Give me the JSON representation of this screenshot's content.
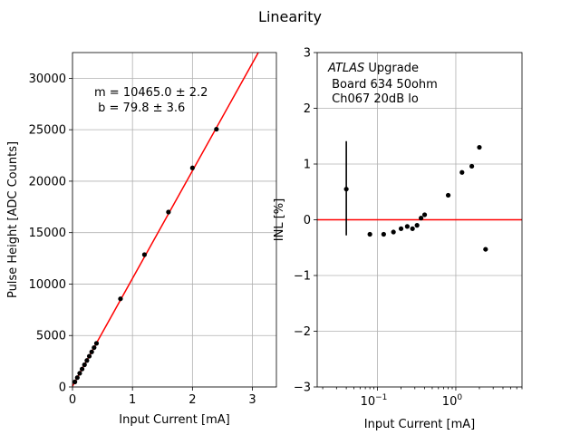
{
  "figure": {
    "title": "Linearity"
  },
  "chart_data": [
    {
      "type": "scatter",
      "id": "linearity",
      "xlabel": "Input Current [mA]",
      "ylabel": "Pulse Height [ADC Counts]",
      "xlim": [
        0,
        3.4
      ],
      "ylim": [
        0,
        32500
      ],
      "xticks": [
        0,
        1,
        2,
        3
      ],
      "yticks": [
        0,
        5000,
        10000,
        15000,
        20000,
        25000,
        30000
      ],
      "grid": true,
      "points": {
        "x": [
          0.04,
          0.08,
          0.12,
          0.16,
          0.2,
          0.24,
          0.28,
          0.32,
          0.36,
          0.4,
          0.8,
          1.2,
          1.6,
          2.0,
          2.4
        ],
        "y": [
          495,
          907,
          1329,
          1745,
          2159,
          2573,
          2990,
          3408,
          3823,
          4241,
          8570,
          12860,
          17000,
          21290,
          25050
        ]
      },
      "fit": {
        "slope": 10465.0,
        "intercept": 79.8,
        "color": "#ff0000"
      },
      "annotation": [
        "m = 10465.0 ± 2.2",
        " b = 79.8 ± 3.6"
      ]
    },
    {
      "type": "scatter",
      "id": "inl",
      "xscale": "log",
      "xlabel": "Input Current [mA]",
      "ylabel": "INL [%]",
      "xlim": [
        0.017,
        7.0
      ],
      "ylim": [
        -3,
        3
      ],
      "xticks": [
        0.1,
        1
      ],
      "xtick_labels": [
        "10",
        "10"
      ],
      "xtick_exponents": [
        "−1",
        "0"
      ],
      "yticks": [
        -3,
        -2,
        -1,
        0,
        1,
        2,
        3
      ],
      "ytick_labels": [
        "−3",
        "−2",
        "−1",
        "0",
        "1",
        "2",
        "3"
      ],
      "grid": true,
      "zero_line_color": "#ff0000",
      "points": {
        "x": [
          0.04,
          0.08,
          0.12,
          0.16,
          0.2,
          0.24,
          0.28,
          0.32,
          0.36,
          0.4,
          0.8,
          1.2,
          1.6,
          2.0,
          2.4
        ],
        "y": [
          0.55,
          -0.26,
          -0.26,
          -0.22,
          -0.16,
          -0.12,
          -0.16,
          -0.1,
          0.03,
          0.09,
          0.44,
          0.85,
          0.96,
          1.3,
          -0.53
        ]
      },
      "errorbars": [
        {
          "x": 0.04,
          "low": -0.28,
          "high": 1.41
        }
      ],
      "annotation": {
        "italic": "ATLAS",
        "suffix": " Upgrade",
        "lines": [
          " Board 634 50ohm",
          " Ch067 20dB lo"
        ]
      }
    }
  ]
}
